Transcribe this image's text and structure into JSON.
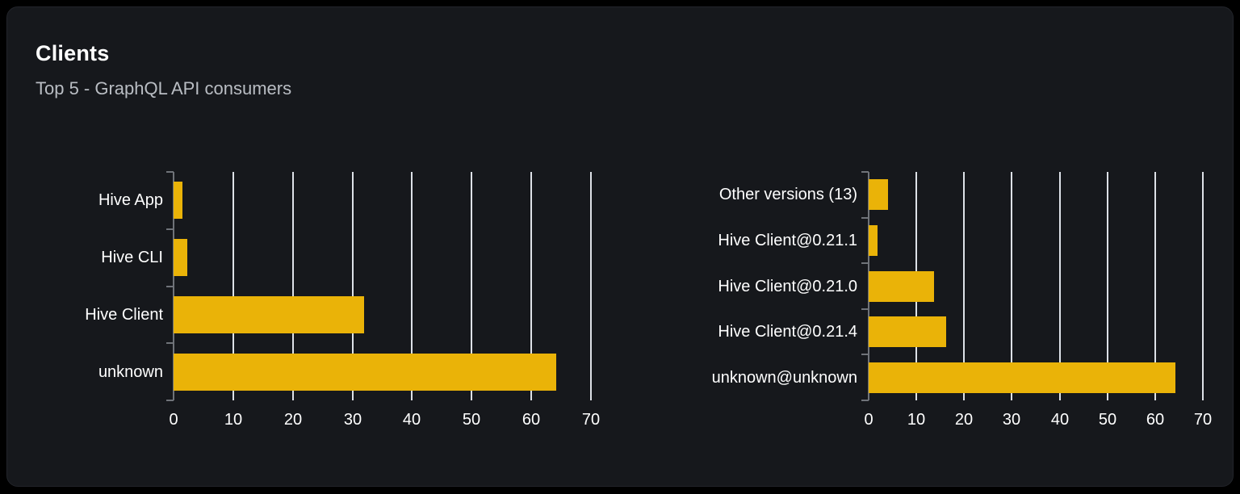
{
  "header": {
    "title": "Clients",
    "subtitle": "Top 5 - GraphQL API consumers"
  },
  "colors": {
    "bar": "#eab308",
    "grid": "#dde1e7",
    "axis": "#6f7379",
    "text": "#ffffff",
    "subtitle_text": "#b9bdc3",
    "card_bg": "#16181c",
    "page_bg": "#000000"
  },
  "chart_data": [
    {
      "name": "clients-by-name",
      "type": "bar",
      "orientation": "horizontal",
      "categories": [
        "Hive App",
        "Hive CLI",
        "Hive Client",
        "unknown"
      ],
      "values": [
        1.5,
        2.3,
        32,
        64.2
      ],
      "xlim": [
        0,
        70
      ],
      "xticks": [
        0,
        10,
        20,
        30,
        40,
        50,
        60,
        70
      ],
      "grid": true,
      "legend": false,
      "bar_color": "#eab308"
    },
    {
      "name": "clients-by-version",
      "type": "bar",
      "orientation": "horizontal",
      "categories": [
        "Other versions (13)",
        "Hive Client@0.21.1",
        "Hive Client@0.21.0",
        "Hive Client@0.21.4",
        "unknown@unknown"
      ],
      "values": [
        4,
        1.8,
        13.7,
        16.3,
        64.2
      ],
      "xlim": [
        0,
        70
      ],
      "xticks": [
        0,
        10,
        20,
        30,
        40,
        50,
        60,
        70
      ],
      "grid": true,
      "legend": false,
      "bar_color": "#eab308"
    }
  ]
}
